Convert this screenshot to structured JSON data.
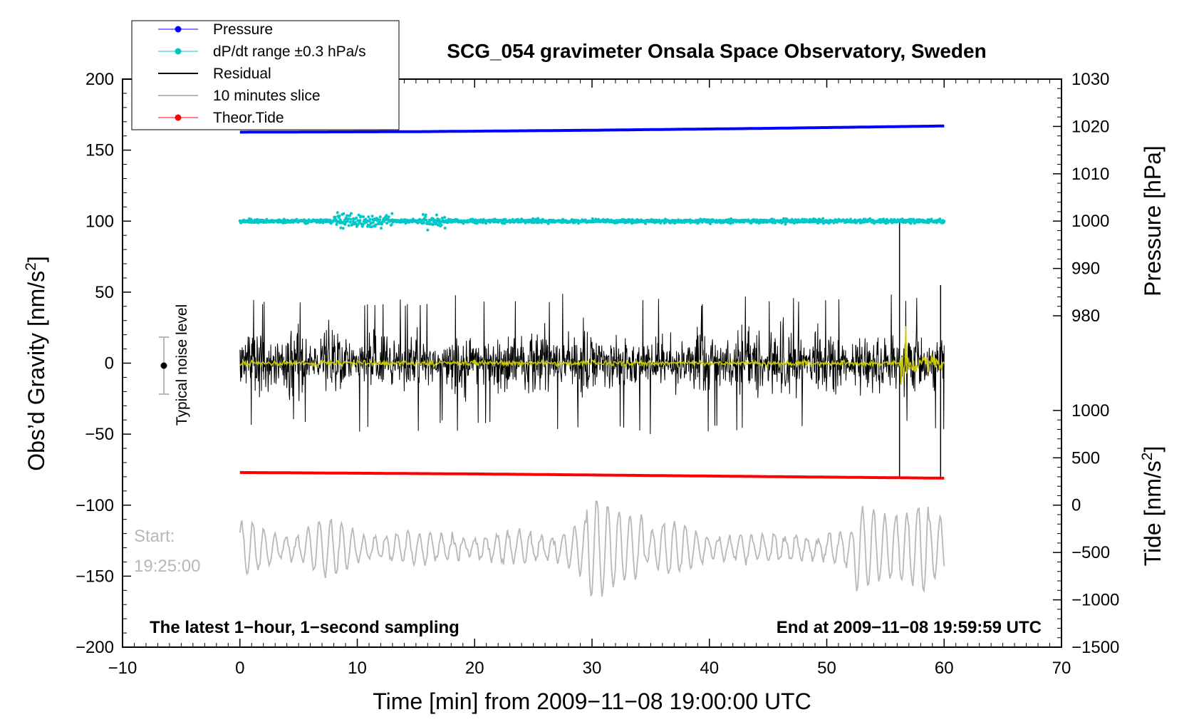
{
  "chart_data": {
    "type": "line",
    "title": "SCG_054 gravimeter Onsala Space Observatory, Sweden",
    "xlabel": "Time [min] from 2009−11−08 19:00:00 UTC",
    "ylabel": "Obs’d Gravity [nm/s²]",
    "ylabel_main": "Obs’d Gravity [nm/s",
    "ylabel_sup": "2",
    "ylabel_end": "]",
    "xlim": [
      -10,
      70
    ],
    "ylim": [
      -200,
      200
    ],
    "x_ticks": [
      -10,
      0,
      10,
      20,
      30,
      40,
      50,
      60,
      70
    ],
    "x_tick_labels": [
      "−10",
      "0",
      "10",
      "20",
      "30",
      "40",
      "50",
      "60",
      "70"
    ],
    "y_ticks": [
      200,
      150,
      100,
      50,
      0,
      -50,
      -100,
      -150,
      -200
    ],
    "y_tick_labels": [
      "200",
      "150",
      "100",
      "50",
      "0",
      "−50",
      "−100",
      "−150",
      "−200"
    ],
    "pressure_axis": {
      "label": "Pressure [hPa]",
      "ticks": [
        1030,
        1020,
        1010,
        1000,
        990,
        980
      ],
      "tick_labels": [
        "1030",
        "1020",
        "1010",
        "1000",
        "990",
        "980"
      ],
      "gravity_at_1030": 200,
      "gravity_per_hpa": 3.333
    },
    "tide_axis": {
      "label": "Tide [nm/s²]",
      "label_main": "Tide [nm/s",
      "label_sup": "2",
      "label_end": "]",
      "ticks": [
        1000,
        500,
        0,
        -500,
        -1000,
        -1500
      ],
      "tick_labels": [
        "1000",
        "500",
        "0",
        "−500",
        "−1000",
        "−1500"
      ],
      "gravity_at_minus_1500": -200,
      "gravity_per_nms2": 0.06667
    },
    "legend": {
      "placement": "top-left",
      "entries": [
        {
          "label": "Pressure",
          "color": "#0000ff",
          "marker": "dot"
        },
        {
          "label": "dP/dt range ±0.3 hPa/s",
          "color": "#00c8c8",
          "marker": "dot"
        },
        {
          "label": "Residual",
          "color": "#000000",
          "marker": "none"
        },
        {
          "label": "10 minutes slice",
          "color": "#b8b8b8",
          "marker": "none"
        },
        {
          "label": "Theor.Tide",
          "color": "#ff0000",
          "marker": "dot"
        }
      ]
    },
    "series": [
      {
        "name": "Pressure",
        "color": "#0000ff",
        "unit": "hPa",
        "x": [
          0,
          15,
          30,
          45,
          60
        ],
        "values": [
          1018.8,
          1018.9,
          1019.2,
          1019.6,
          1020.1
        ]
      },
      {
        "name": "dP/dt range ±0.3 hPa/s",
        "color": "#00c8c8",
        "unit": "nm/s2",
        "baseline": 100,
        "typical_spread": 1.5,
        "max_spread": 10,
        "x_range": [
          0,
          60
        ]
      },
      {
        "name": "Residual",
        "color": "#000000",
        "unit": "nm/s2",
        "baseline": 0,
        "typical_amplitude": 30,
        "max_amplitude": 50,
        "x_range": [
          0,
          60
        ],
        "spikes": [
          {
            "x": 56.2,
            "max": 100,
            "min": -80
          },
          {
            "x": 59.7,
            "max": 55,
            "min": -80
          }
        ]
      },
      {
        "name": "Residual smoothed",
        "color": "#c8c800",
        "unit": "nm/s2",
        "baseline": 0,
        "typical_amplitude": 3,
        "disturbance_x": 56.2,
        "x_range": [
          0,
          60
        ]
      },
      {
        "name": "Theor.Tide",
        "color": "#ff0000",
        "unit": "nm/s2",
        "x": [
          0,
          20,
          40,
          60
        ],
        "values": [
          -77,
          -78,
          -79.5,
          -81
        ]
      },
      {
        "name": "10 minutes slice",
        "color": "#b8b8b8",
        "unit": "nm/s2",
        "baseline": -130,
        "typical_amplitude": 20,
        "max_amplitude": 40,
        "x_range": [
          0,
          60
        ]
      }
    ],
    "annotations": {
      "bottom_left": "The latest 1−hour, 1−second sampling",
      "bottom_right": "End at 2009−11−08 19:59:59 UTC",
      "start_label": "Start:",
      "start_time": "19:25:00",
      "noise_label": "Typical noise level",
      "noise_bar": {
        "x": -7,
        "center": 0,
        "low": -20,
        "high": 20
      }
    }
  }
}
